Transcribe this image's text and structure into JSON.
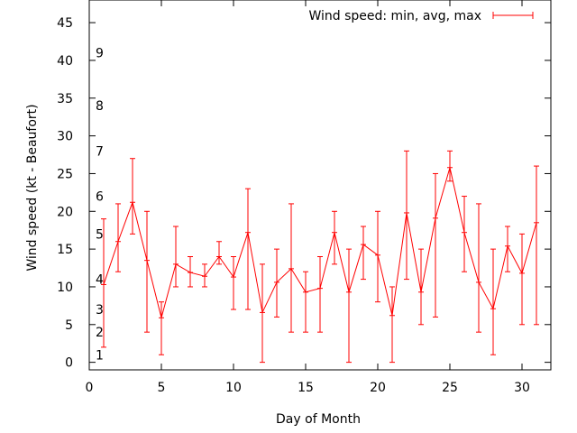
{
  "chart_data": {
    "type": "line",
    "xlabel": "Day of Month",
    "ylabel": "Wind speed (kt - Beaufort)",
    "xlim": [
      0,
      32
    ],
    "ylim": [
      -1,
      48
    ],
    "x_ticks": [
      "0",
      "5",
      "10",
      "15",
      "20",
      "25",
      "30"
    ],
    "y_ticks": [
      "0",
      "5",
      "10",
      "15",
      "20",
      "25",
      "30",
      "35",
      "40",
      "45"
    ],
    "beaufort_labels": [
      {
        "text": "1",
        "y": 1
      },
      {
        "text": "2",
        "y": 4
      },
      {
        "text": "3",
        "y": 7
      },
      {
        "text": "4",
        "y": 11
      },
      {
        "text": "5",
        "y": 17
      },
      {
        "text": "6",
        "y": 22
      },
      {
        "text": "7",
        "y": 28
      },
      {
        "text": "8",
        "y": 34
      },
      {
        "text": "9",
        "y": 41
      }
    ],
    "legend": {
      "label": "Wind speed: min, avg, max",
      "position": "top-right"
    },
    "grid": false,
    "color": "#ff0000",
    "series": [
      {
        "name": "Wind speed: min, avg, max",
        "x": [
          1,
          2,
          3,
          4,
          5,
          6,
          7,
          8,
          9,
          10,
          11,
          12,
          13,
          14,
          15,
          16,
          17,
          18,
          19,
          20,
          21,
          22,
          23,
          24,
          25,
          26,
          27,
          28,
          29,
          30,
          31
        ],
        "avg": [
          10.3,
          16,
          21.2,
          13.5,
          5.9,
          13,
          11.9,
          11.4,
          14,
          11.3,
          17.2,
          6.6,
          10.6,
          12.4,
          9.3,
          9.8,
          17.2,
          9.3,
          15.6,
          14.2,
          6.2,
          19.8,
          9.3,
          19.1,
          25.8,
          17.2,
          10.6,
          7.1,
          15.4,
          11.8,
          18.5
        ],
        "min": [
          2,
          12,
          17,
          4,
          1,
          10,
          10,
          10,
          13,
          7,
          7,
          0,
          6,
          4,
          4,
          4,
          13,
          0,
          11,
          8,
          0,
          11,
          5,
          6,
          24,
          12,
          4,
          1,
          12,
          5,
          5
        ],
        "max": [
          19,
          21,
          27,
          20,
          8,
          18,
          14,
          13,
          16,
          14,
          23,
          13,
          15,
          21,
          12,
          14,
          20,
          15,
          18,
          20,
          10,
          28,
          15,
          25,
          28,
          22,
          21,
          15,
          18,
          17,
          26
        ]
      }
    ]
  }
}
